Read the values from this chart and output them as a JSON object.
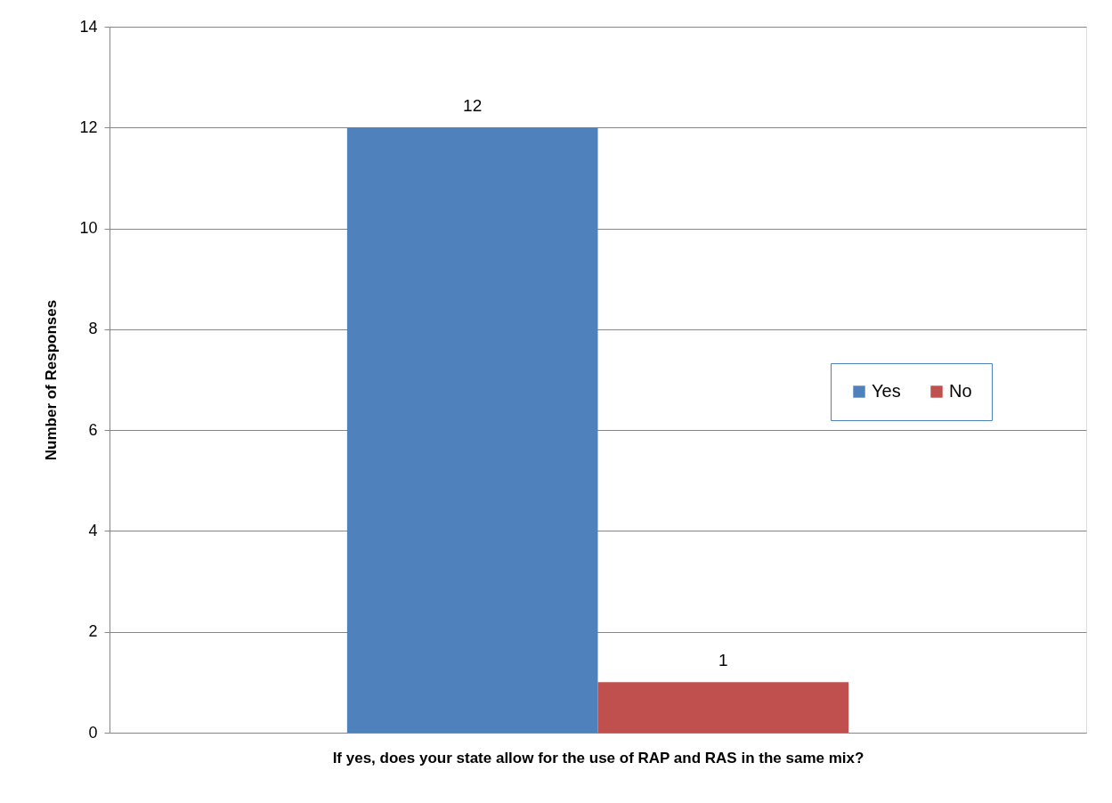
{
  "chart_data": {
    "type": "bar",
    "xlabel": "If yes, does your state allow for the use of RAP and RAS in the same mix?",
    "ylabel": "Number of Responses",
    "categories": [
      null
    ],
    "series": [
      {
        "name": "Yes",
        "color": "#4f81bd",
        "values": [
          12
        ]
      },
      {
        "name": "No",
        "color": "#c0504d",
        "values": [
          1
        ]
      }
    ],
    "ylim": [
      0,
      14
    ],
    "yticks": [
      0,
      2,
      4,
      6,
      8,
      10,
      12,
      14
    ],
    "grid": "y",
    "legend": "right",
    "data_labels": true
  }
}
